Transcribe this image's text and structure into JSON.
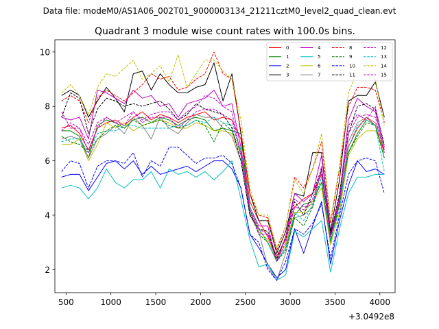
{
  "suptitle": "Data file: modeM0/AS1A06_002T01_9000003134_21211cztM0_level2_quad_clean.evt",
  "chart_data": {
    "type": "line",
    "title": "Quadrant 3 module wise count rates with 100.0s bins.",
    "xlabel": "",
    "ylabel": "",
    "x_offset_label": "+3.0492e8",
    "xlim": [
      375,
      4170
    ],
    "ylim": [
      1.15,
      10.45
    ],
    "x_ticks": [
      500,
      1000,
      1500,
      2000,
      2500,
      3000,
      3500,
      4000
    ],
    "x_tick_labels": [
      "500",
      "1000",
      "1500",
      "2000",
      "2500",
      "3000",
      "3500",
      "4000"
    ],
    "y_ticks": [
      2,
      4,
      6,
      8,
      10
    ],
    "y_tick_labels": [
      "2",
      "4",
      "6",
      "8",
      "10"
    ],
    "x": [
      450,
      550,
      650,
      750,
      850,
      950,
      1050,
      1150,
      1250,
      1350,
      1450,
      1550,
      1650,
      1750,
      1850,
      1950,
      2050,
      2150,
      2250,
      2350,
      2450,
      2550,
      2650,
      2750,
      2850,
      2950,
      3050,
      3150,
      3250,
      3350,
      3450,
      3550,
      3650,
      3750,
      3850,
      3950,
      4050
    ],
    "legend_position": "top-right",
    "series": [
      {
        "name": "0",
        "color": "#ff0000",
        "dash": "solid",
        "values": [
          7.2,
          7.3,
          7.0,
          6.4,
          7.2,
          7.4,
          7.5,
          7.3,
          7.6,
          7.8,
          7.5,
          7.7,
          7.6,
          7.4,
          7.6,
          7.7,
          7.8,
          7.5,
          7.6,
          7.5,
          6.8,
          4.5,
          3.8,
          3.2,
          2.5,
          3.1,
          4.3,
          4.6,
          4.8,
          5.5,
          3.3,
          4.5,
          6.5,
          7.2,
          7.6,
          7.3,
          6.3
        ]
      },
      {
        "name": "1",
        "color": "#008000",
        "dash": "solid",
        "values": [
          7.1,
          7.1,
          6.9,
          6.1,
          7.3,
          7.5,
          7.4,
          7.2,
          7.5,
          7.6,
          7.4,
          7.6,
          7.5,
          7.3,
          7.5,
          7.6,
          7.5,
          7.1,
          7.2,
          7.1,
          7.0,
          4.0,
          3.5,
          3.0,
          2.3,
          2.8,
          4.0,
          4.4,
          4.5,
          5.2,
          3.0,
          4.4,
          6.3,
          7.0,
          7.5,
          7.3,
          6.1
        ]
      },
      {
        "name": "2",
        "color": "#0000ff",
        "dash": "solid",
        "values": [
          5.4,
          5.5,
          5.5,
          4.9,
          5.4,
          5.9,
          6.0,
          5.7,
          6.0,
          5.5,
          5.8,
          5.5,
          5.6,
          5.7,
          5.8,
          5.6,
          5.8,
          6.0,
          6.0,
          5.7,
          5.0,
          3.3,
          2.8,
          2.2,
          1.7,
          2.0,
          3.5,
          2.6,
          3.6,
          4.5,
          2.2,
          3.8,
          5.1,
          6.0,
          5.6,
          5.7,
          5.5
        ]
      },
      {
        "name": "3",
        "color": "#000000",
        "dash": "solid",
        "values": [
          8.4,
          8.6,
          8.4,
          7.6,
          8.2,
          8.7,
          8.3,
          7.8,
          9.2,
          9.3,
          8.6,
          9.2,
          8.8,
          8.5,
          8.5,
          8.7,
          8.8,
          9.6,
          8.2,
          9.2,
          7.0,
          4.8,
          3.8,
          3.8,
          2.6,
          3.4,
          4.8,
          4.7,
          6.3,
          6.3,
          3.4,
          5.3,
          8.2,
          8.4,
          8.4,
          8.9,
          7.6
        ]
      },
      {
        "name": "4",
        "color": "#bf00bf",
        "dash": "solid",
        "values": [
          7.6,
          7.5,
          7.6,
          6.8,
          8.6,
          8.5,
          8.3,
          8.1,
          8.6,
          8.3,
          8.4,
          8.0,
          8.1,
          7.6,
          8.1,
          8.2,
          8.3,
          8.6,
          8.0,
          8.1,
          6.5,
          4.3,
          3.6,
          3.6,
          2.3,
          3.2,
          4.8,
          4.5,
          4.8,
          6.2,
          3.3,
          4.7,
          7.5,
          8.3,
          8.0,
          7.8,
          6.4
        ]
      },
      {
        "name": "5",
        "color": "#00bfbf",
        "dash": "solid",
        "values": [
          5.0,
          5.1,
          5.0,
          4.6,
          5.0,
          5.7,
          5.2,
          5.0,
          5.3,
          5.3,
          5.6,
          5.0,
          5.7,
          5.5,
          5.6,
          5.4,
          5.6,
          5.3,
          5.6,
          6.0,
          4.6,
          3.1,
          2.1,
          2.2,
          1.6,
          1.8,
          3.4,
          3.2,
          3.5,
          3.8,
          1.9,
          3.5,
          4.8,
          5.4,
          5.4,
          5.5,
          5.5
        ]
      },
      {
        "name": "6",
        "color": "#bfbf00",
        "dash": "solid",
        "values": [
          6.6,
          6.6,
          6.8,
          6.0,
          6.6,
          7.4,
          7.2,
          7.4,
          7.1,
          7.3,
          7.4,
          7.5,
          7.4,
          7.2,
          7.2,
          7.4,
          7.3,
          7.1,
          7.1,
          7.0,
          6.2,
          4.2,
          3.4,
          3.1,
          2.4,
          2.9,
          4.1,
          4.1,
          4.5,
          5.0,
          2.9,
          4.1,
          6.2,
          6.8,
          7.1,
          7.1,
          6.5
        ]
      },
      {
        "name": "7",
        "color": "#808080",
        "dash": "solid",
        "values": [
          6.8,
          6.9,
          6.8,
          6.1,
          6.8,
          7.0,
          7.3,
          7.0,
          7.6,
          7.3,
          6.8,
          7.6,
          7.2,
          7.0,
          7.4,
          7.7,
          7.6,
          7.6,
          7.2,
          6.9,
          6.0,
          4.0,
          3.4,
          2.1,
          1.6,
          2.6,
          3.9,
          4.0,
          4.3,
          5.7,
          3.2,
          4.4,
          6.7,
          7.4,
          7.6,
          7.4,
          6.5
        ]
      },
      {
        "name": "8",
        "color": "#ff0000",
        "dash": "dashed",
        "values": [
          8.2,
          8.4,
          8.2,
          7.4,
          8.3,
          8.6,
          8.4,
          8.2,
          8.5,
          8.8,
          9.2,
          9.0,
          9.1,
          8.6,
          8.7,
          9.0,
          9.2,
          10.0,
          9.2,
          9.0,
          7.1,
          4.8,
          4.0,
          3.9,
          2.7,
          3.6,
          5.4,
          5.0,
          5.7,
          6.7,
          3.7,
          5.7,
          8.0,
          8.7,
          8.7,
          8.6,
          7.4
        ]
      },
      {
        "name": "9",
        "color": "#008000",
        "dash": "dashed",
        "values": [
          6.9,
          6.7,
          6.6,
          6.3,
          6.8,
          7.1,
          7.3,
          7.2,
          7.5,
          7.3,
          7.4,
          7.5,
          7.3,
          7.2,
          7.3,
          7.5,
          7.3,
          6.7,
          7.4,
          7.1,
          6.3,
          4.1,
          3.3,
          3.0,
          2.3,
          2.7,
          3.9,
          3.6,
          4.3,
          5.4,
          3.1,
          4.4,
          6.3,
          6.9,
          7.4,
          7.3,
          6.1
        ]
      },
      {
        "name": "10",
        "color": "#0000ff",
        "dash": "dashed",
        "values": [
          5.6,
          6.0,
          5.9,
          5.0,
          5.8,
          6.0,
          6.0,
          5.9,
          6.3,
          5.4,
          6.0,
          5.8,
          6.5,
          6.5,
          6.2,
          5.9,
          6.1,
          6.1,
          6.2,
          5.9,
          5.0,
          3.3,
          3.0,
          2.0,
          1.6,
          2.3,
          3.5,
          3.3,
          3.7,
          4.4,
          2.4,
          4.0,
          5.5,
          6.0,
          6.1,
          6.0,
          4.8
        ]
      },
      {
        "name": "11",
        "color": "#000000",
        "dash": "dashed",
        "values": [
          7.6,
          8.5,
          8.3,
          7.0,
          7.9,
          8.3,
          8.2,
          8.0,
          8.1,
          8.0,
          8.1,
          8.2,
          7.9,
          7.5,
          7.7,
          8.1,
          7.9,
          7.8,
          7.7,
          7.2,
          6.0,
          4.0,
          3.5,
          3.4,
          2.4,
          3.2,
          4.5,
          4.0,
          4.8,
          5.7,
          3.3,
          4.8,
          7.0,
          8.0,
          8.1,
          7.9,
          6.6
        ]
      },
      {
        "name": "12",
        "color": "#bf00bf",
        "dash": "dashed",
        "values": [
          7.8,
          7.2,
          7.2,
          6.6,
          7.4,
          7.6,
          7.4,
          7.3,
          7.8,
          7.5,
          7.7,
          7.8,
          7.8,
          7.5,
          7.8,
          8.0,
          8.4,
          8.3,
          8.0,
          7.8,
          6.2,
          4.2,
          3.3,
          3.3,
          2.3,
          3.2,
          4.6,
          4.3,
          4.4,
          5.8,
          3.2,
          4.5,
          7.3,
          7.7,
          7.5,
          8.0,
          6.5
        ]
      },
      {
        "name": "13",
        "color": "#00bfbf",
        "dash": "dashed",
        "values": [
          6.7,
          6.8,
          6.8,
          6.3,
          7.0,
          7.1,
          7.1,
          7.3,
          7.3,
          7.2,
          7.2,
          7.2,
          7.2,
          7.3,
          7.3,
          7.5,
          7.4,
          7.6,
          7.4,
          7.3,
          6.4,
          4.3,
          3.5,
          3.0,
          2.3,
          2.8,
          4.1,
          3.8,
          4.4,
          5.4,
          3.1,
          4.2,
          6.5,
          7.3,
          7.5,
          7.3,
          5.6
        ]
      },
      {
        "name": "14",
        "color": "#bfbf00",
        "dash": "dashed",
        "values": [
          8.5,
          8.8,
          8.4,
          7.7,
          8.7,
          9.2,
          9.1,
          9.4,
          9.7,
          9.0,
          9.2,
          9.5,
          8.9,
          9.9,
          8.7,
          9.2,
          9.7,
          9.7,
          9.3,
          9.0,
          7.5,
          5.0,
          4.0,
          4.0,
          2.8,
          3.6,
          5.3,
          4.8,
          5.7,
          7.0,
          3.8,
          5.8,
          8.5,
          9.3,
          9.4,
          9.0,
          7.3
        ]
      },
      {
        "name": "15",
        "color": "#bf00bf",
        "dash": "dashed",
        "values": [
          7.1,
          7.4,
          7.2,
          6.3,
          7.2,
          7.6,
          7.4,
          7.6,
          7.8,
          7.4,
          7.6,
          7.6,
          7.6,
          7.2,
          7.5,
          7.8,
          7.9,
          7.9,
          7.7,
          7.5,
          6.3,
          4.2,
          3.5,
          3.3,
          2.3,
          3.0,
          4.3,
          4.2,
          4.6,
          5.6,
          3.2,
          4.6,
          7.0,
          7.6,
          7.7,
          7.6,
          6.3
        ]
      }
    ]
  }
}
